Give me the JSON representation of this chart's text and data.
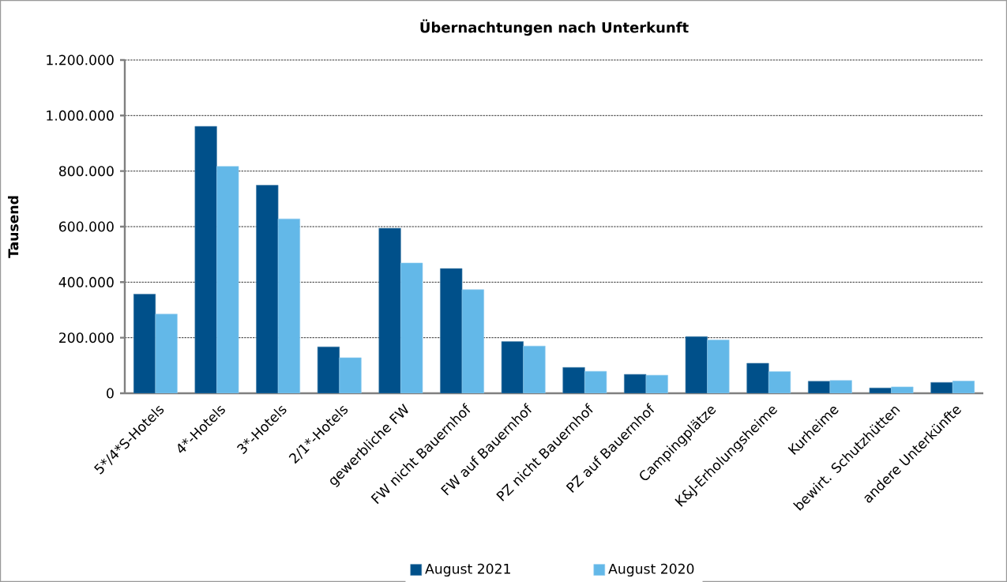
{
  "chart_data": {
    "type": "bar",
    "title": "Übernachtungen nach Unterkunft",
    "ylabel": "Tausend",
    "categories": [
      "5*/4*S-Hotels",
      "4*-Hotels",
      "3*-Hotels",
      "2/1*-Hotels",
      "gewerbliche FW",
      "FW nicht Bauernhof",
      "FW auf Bauernhof",
      "PZ nicht Bauernhof",
      "PZ auf Bauernhof",
      "Campingplätze",
      "K&J-Erholungsheime",
      "Kurheime",
      "bewirt. Schutzhütten",
      "andere Unterkünfte"
    ],
    "series": [
      {
        "name": "August 2021",
        "color": "#00508a",
        "values": [
          357000,
          961000,
          749000,
          167000,
          594000,
          449000,
          186000,
          93000,
          68000,
          204000,
          108000,
          43000,
          19000,
          39000
        ]
      },
      {
        "name": "August 2020",
        "color": "#63b8e8",
        "values": [
          285000,
          817000,
          628000,
          128000,
          469000,
          373000,
          170000,
          79000,
          65000,
          192000,
          78000,
          46000,
          23000,
          44000
        ]
      }
    ],
    "ylim": [
      0,
      1200000
    ],
    "yticks": [
      0,
      {
        "value": 200000,
        "label": "200.000"
      },
      {
        "value": 400000,
        "label": "400.000"
      },
      {
        "value": 600000,
        "label": "600.000"
      },
      {
        "value": 800000,
        "label": "800.000"
      },
      {
        "value": 1000000,
        "label": "1.000.000"
      },
      {
        "value": 1200000,
        "label": "1.200.000"
      }
    ],
    "grid": "y",
    "legend": "bottom"
  }
}
